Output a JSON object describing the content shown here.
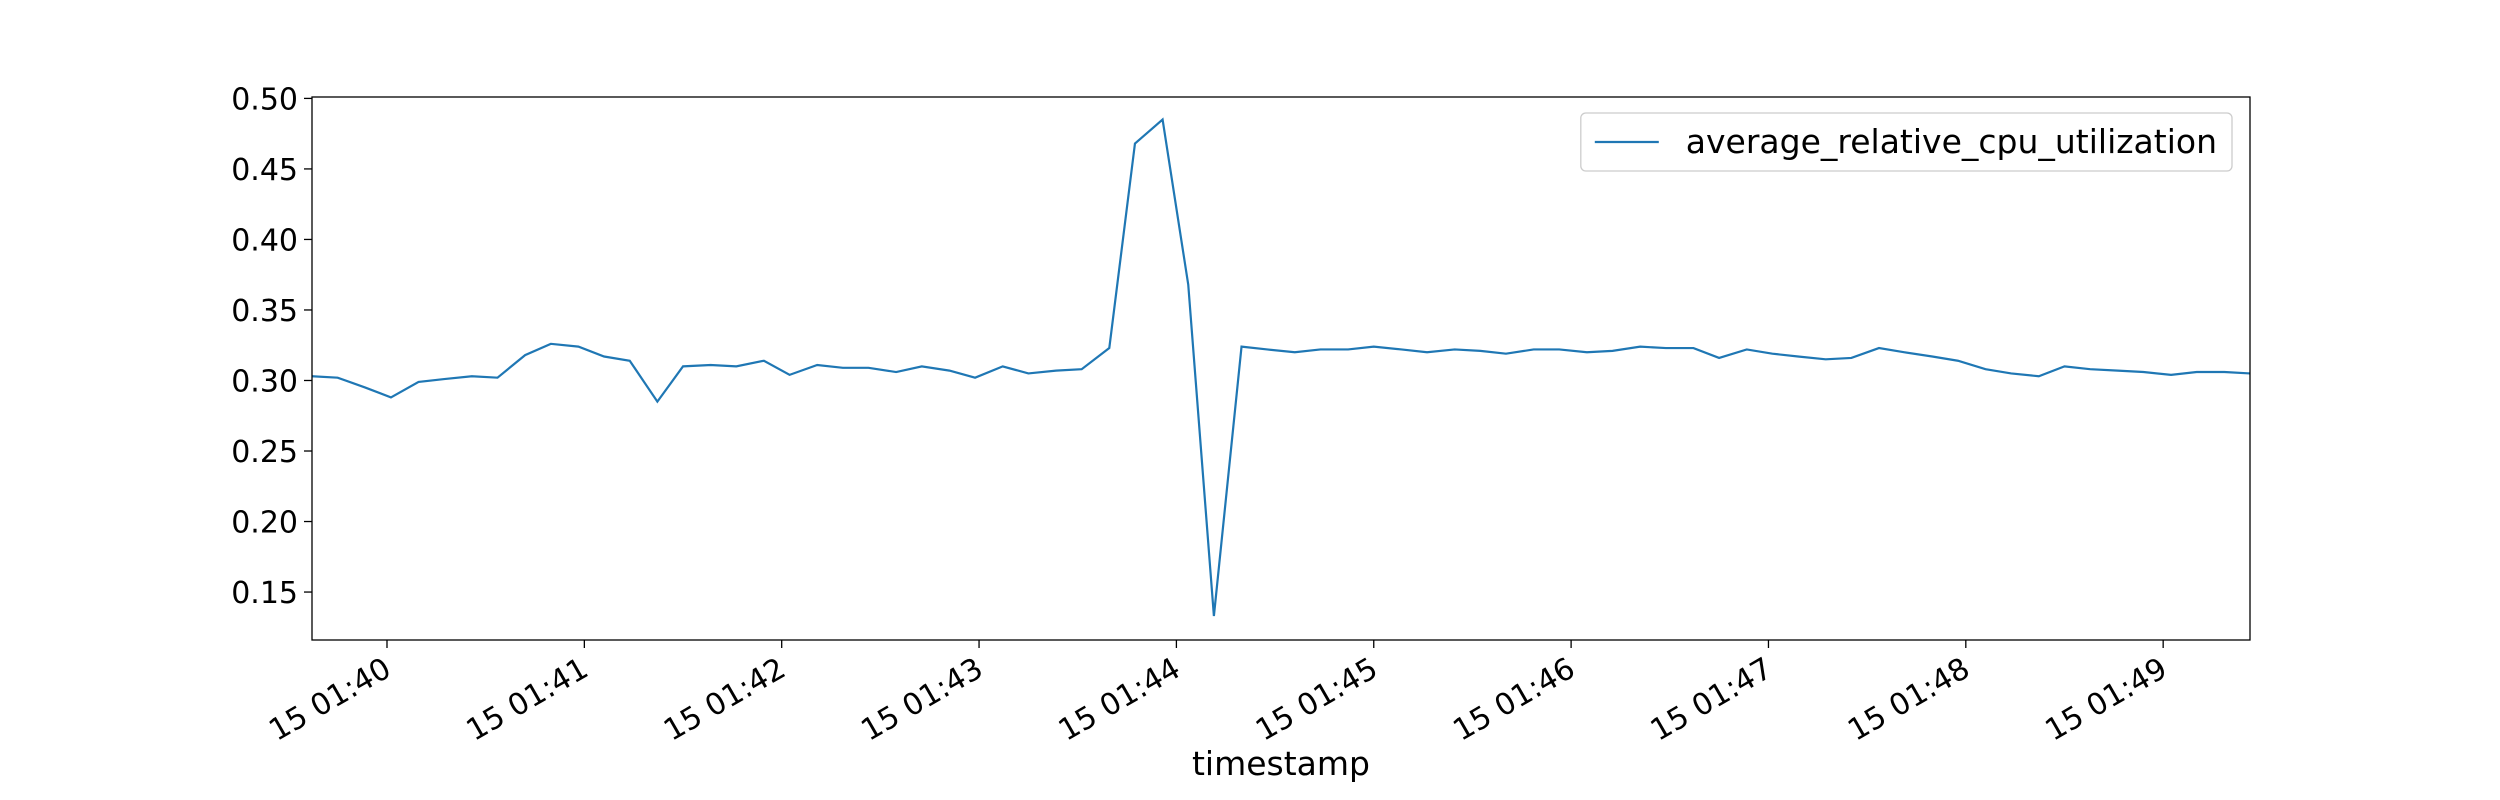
{
  "chart_data": {
    "type": "line",
    "xlabel": "timestamp",
    "x": [
      39.62,
      39.75,
      39.89,
      40.02,
      40.16,
      40.29,
      40.43,
      40.56,
      40.7,
      40.83,
      40.97,
      41.1,
      41.23,
      41.37,
      41.5,
      41.64,
      41.77,
      41.91,
      42.04,
      42.18,
      42.31,
      42.44,
      42.58,
      42.71,
      42.85,
      42.98,
      43.12,
      43.25,
      43.39,
      43.52,
      43.66,
      43.79,
      43.93,
      44.06,
      44.19,
      44.33,
      44.46,
      44.6,
      44.73,
      44.87,
      45.0,
      45.14,
      45.27,
      45.41,
      45.54,
      45.67,
      45.81,
      45.94,
      46.08,
      46.21,
      46.35,
      46.48,
      46.62,
      46.75,
      46.89,
      47.02,
      47.15,
      47.29,
      47.42,
      47.56,
      47.69,
      47.83,
      47.96,
      48.1,
      48.23,
      48.37,
      48.5,
      48.63,
      48.77,
      48.9,
      49.04,
      49.17,
      49.31,
      49.44
    ],
    "series": [
      {
        "name": "average_relative_cpu_utilization",
        "color": "#1f77b4",
        "values": [
          0.303,
          0.302,
          0.295,
          0.288,
          0.299,
          0.301,
          0.303,
          0.302,
          0.318,
          0.326,
          0.324,
          0.317,
          0.314,
          0.285,
          0.31,
          0.311,
          0.31,
          0.314,
          0.304,
          0.311,
          0.309,
          0.309,
          0.306,
          0.31,
          0.307,
          0.302,
          0.31,
          0.305,
          0.307,
          0.308,
          0.323,
          0.468,
          0.485,
          0.368,
          0.133,
          0.324,
          0.322,
          0.32,
          0.322,
          0.322,
          0.324,
          0.322,
          0.32,
          0.322,
          0.321,
          0.319,
          0.322,
          0.322,
          0.32,
          0.321,
          0.324,
          0.323,
          0.323,
          0.316,
          0.322,
          0.319,
          0.317,
          0.315,
          0.316,
          0.323,
          0.32,
          0.317,
          0.314,
          0.308,
          0.305,
          0.303,
          0.31,
          0.308,
          0.307,
          0.306,
          0.304,
          0.306,
          0.306,
          0.305
        ]
      }
    ],
    "xlim": [
      39.62,
      49.44
    ],
    "xticks": [
      {
        "value": 40,
        "label": "15 01:40"
      },
      {
        "value": 41,
        "label": "15 01:41"
      },
      {
        "value": 42,
        "label": "15 01:42"
      },
      {
        "value": 43,
        "label": "15 01:43"
      },
      {
        "value": 44,
        "label": "15 01:44"
      },
      {
        "value": 45,
        "label": "15 01:45"
      },
      {
        "value": 46,
        "label": "15 01:46"
      },
      {
        "value": 47,
        "label": "15 01:47"
      },
      {
        "value": 48,
        "label": "15 01:48"
      },
      {
        "value": 49,
        "label": "15 01:49"
      }
    ],
    "ylim": [
      0.116,
      0.501
    ],
    "yticks": [
      0.15,
      {
        "value": 0.2,
        "label": "0.20"
      },
      0.25,
      {
        "value": 0.3,
        "label": "0.30"
      },
      0.35,
      {
        "value": 0.4,
        "label": "0.40"
      },
      0.45,
      {
        "value": 0.5,
        "label": "0.50"
      }
    ],
    "grid": false,
    "legend": "upper right"
  }
}
